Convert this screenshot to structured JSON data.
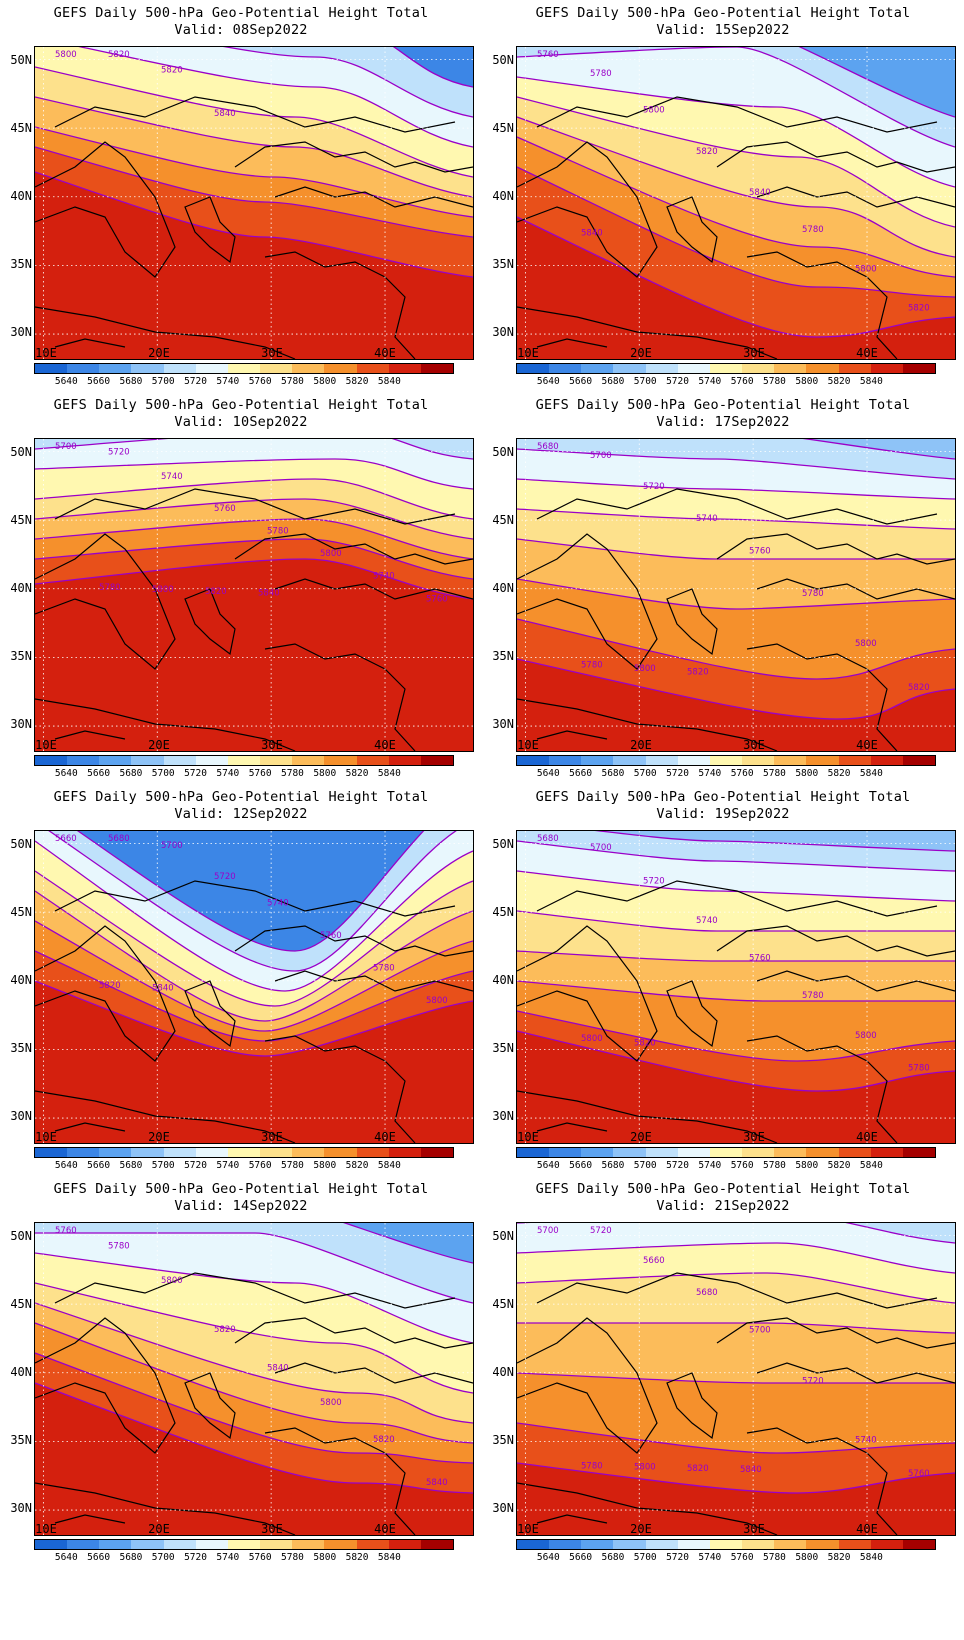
{
  "panels": [
    {
      "title": "GEFS Daily 500-hPa Geo-Potential Height Total",
      "valid": "Valid: 08Sep2022",
      "contour_labels": [
        "5800",
        "5820",
        "5820",
        "5840"
      ]
    },
    {
      "title": "GEFS Daily 500-hPa Geo-Potential Height Total",
      "valid": "Valid: 15Sep2022",
      "contour_labels": [
        "5760",
        "5780",
        "5800",
        "5820",
        "5840",
        "5780",
        "5800",
        "5820",
        "5840"
      ]
    },
    {
      "title": "GEFS Daily 500-hPa Geo-Potential Height Total",
      "valid": "Valid: 10Sep2022",
      "contour_labels": [
        "5700",
        "5720",
        "5740",
        "5760",
        "5780",
        "5800",
        "5740",
        "5760",
        "5780",
        "5800",
        "5820",
        "5840"
      ]
    },
    {
      "title": "GEFS Daily 500-hPa Geo-Potential Height Total",
      "valid": "Valid: 17Sep2022",
      "contour_labels": [
        "5680",
        "5700",
        "5720",
        "5740",
        "5760",
        "5780",
        "5800",
        "5820",
        "5780",
        "5800",
        "5820"
      ]
    },
    {
      "title": "GEFS Daily 500-hPa Geo-Potential Height Total",
      "valid": "Valid: 12Sep2022",
      "contour_labels": [
        "5660",
        "5680",
        "5700",
        "5720",
        "5740",
        "5760",
        "5780",
        "5800",
        "5820",
        "5840"
      ]
    },
    {
      "title": "GEFS Daily 500-hPa Geo-Potential Height Total",
      "valid": "Valid: 19Sep2022",
      "contour_labels": [
        "5680",
        "5700",
        "5720",
        "5740",
        "5760",
        "5780",
        "5800",
        "5780",
        "5800",
        "5820"
      ]
    },
    {
      "title": "GEFS Daily 500-hPa Geo-Potential Height Total",
      "valid": "Valid: 14Sep2022",
      "contour_labels": [
        "5760",
        "5780",
        "5800",
        "5820",
        "5840",
        "5800",
        "5820",
        "5840"
      ]
    },
    {
      "title": "GEFS Daily 500-hPa Geo-Potential Height Total",
      "valid": "Valid: 21Sep2022",
      "contour_labels": [
        "5700",
        "5720",
        "5660",
        "5680",
        "5700",
        "5720",
        "5740",
        "5760",
        "5780",
        "5800",
        "5820",
        "5840"
      ]
    }
  ],
  "axes": {
    "lat_labels": [
      "50N",
      "45N",
      "40N",
      "35N",
      "30N"
    ],
    "lon_labels": [
      "10E",
      "20E",
      "30E",
      "40E"
    ]
  },
  "colorbar": {
    "labels": [
      "5640",
      "5660",
      "5680",
      "5700",
      "5720",
      "5740",
      "5760",
      "5780",
      "5800",
      "5820",
      "5840"
    ],
    "colors": [
      "#1a66d4",
      "#3c86e6",
      "#5ca3f0",
      "#8ec3f7",
      "#bfe1fb",
      "#e8f7fd",
      "#fff8b0",
      "#fde18c",
      "#fcbc5a",
      "#f5902c",
      "#e8501a",
      "#d4200e",
      "#a50000"
    ]
  },
  "contour_color": "#9a00c8"
}
